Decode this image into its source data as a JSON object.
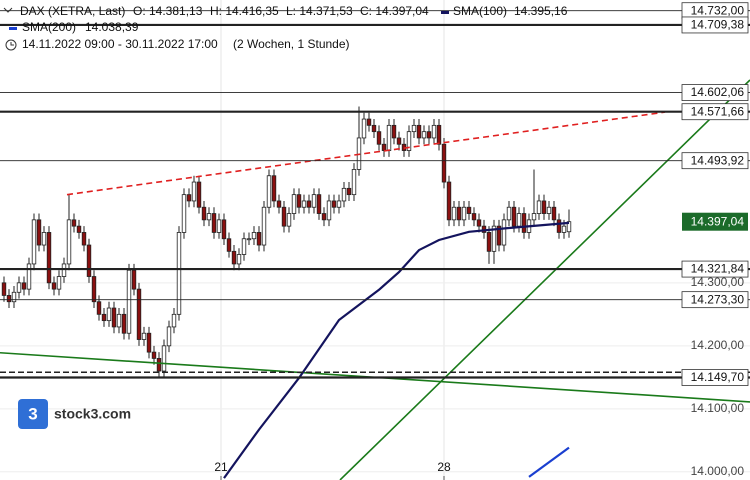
{
  "chart_data": {
    "type": "candlestick",
    "title": "DAX (XETRA, Last)",
    "ohlc_labels": [
      "O: 14.381,13",
      "H: 14.416,35",
      "L: 14.371,53",
      "C: 14.397,04"
    ],
    "date_range": "14.11.2022 09:00 - 30.11.2022 17:00",
    "period": "(2 Wochen, 1 Stunde)",
    "logo": "stock3.com",
    "xlim": [
      -0.8,
      149.2
    ],
    "ylim": [
      13987,
      14749
    ],
    "xticks": [
      {
        "value": 43.4,
        "label": "21"
      },
      {
        "value": 88,
        "label": "28"
      }
    ],
    "yticks": [
      {
        "value": 14000,
        "label": "14.000,00"
      },
      {
        "value": 14100,
        "label": "14.100,00"
      },
      {
        "value": 14200,
        "label": "14.200,00"
      },
      {
        "value": 14300,
        "label": "14.300,00"
      }
    ],
    "up_color": "#ffffff",
    "down_color": "#8b1010",
    "open": [
      14300,
      14280,
      14270,
      14285,
      14300,
      14290,
      14330,
      14400,
      14360,
      14380,
      14300,
      14290,
      14310,
      14330,
      14400,
      14390,
      14380,
      14360,
      14310,
      14270,
      14250,
      14240,
      14260,
      14230,
      14250,
      14220,
      14320,
      14290,
      14210,
      14220,
      14190,
      14180,
      14160,
      14200,
      14230,
      14250,
      14380,
      14440,
      14430,
      14460,
      14420,
      14400,
      14410,
      14380,
      14400,
      14370,
      14350,
      14330,
      14345,
      14370,
      14370,
      14380,
      14360,
      14420,
      14470,
      14430,
      14420,
      14390,
      14410,
      14440,
      14420,
      14430,
      14420,
      14440,
      14410,
      14400,
      14430,
      14420,
      14430,
      14450,
      14440,
      14480,
      14530,
      14560,
      14550,
      14540,
      14520,
      14510,
      14550,
      14530,
      14520,
      14510,
      14540,
      14550,
      14530,
      14540,
      14530,
      14550,
      14520,
      14460,
      14400,
      14420,
      14400,
      14420,
      14410,
      14400,
      14390,
      14380,
      14350,
      14390,
      14360,
      14400,
      14420,
      14390,
      14410,
      14380,
      14400,
      14410,
      14430,
      14410,
      14420,
      14400,
      14380,
      14381.13
    ],
    "high": [
      14310,
      14290,
      14295,
      14310,
      14310,
      14340,
      14410,
      14410,
      14390,
      14390,
      14310,
      14320,
      14340,
      14440,
      14410,
      14400,
      14390,
      14370,
      14320,
      14280,
      14260,
      14270,
      14270,
      14260,
      14260,
      14330,
      14330,
      14300,
      14230,
      14230,
      14200,
      14190,
      14210,
      14240,
      14260,
      14390,
      14450,
      14450,
      14470,
      14470,
      14430,
      14420,
      14420,
      14410,
      14410,
      14380,
      14360,
      14355,
      14380,
      14380,
      14390,
      14390,
      14430,
      14480,
      14480,
      14440,
      14430,
      14420,
      14450,
      14450,
      14440,
      14440,
      14450,
      14450,
      14420,
      14440,
      14440,
      14440,
      14460,
      14460,
      14490,
      14580,
      14570,
      14570,
      14560,
      14550,
      14530,
      14560,
      14560,
      14540,
      14530,
      14550,
      14560,
      14560,
      14550,
      14550,
      14560,
      14560,
      14530,
      14470,
      14430,
      14430,
      14430,
      14430,
      14420,
      14410,
      14400,
      14390,
      14400,
      14400,
      14410,
      14430,
      14430,
      14420,
      14420,
      14410,
      14480,
      14440,
      14440,
      14430,
      14430,
      14410,
      14400,
      14416.35
    ],
    "low": [
      14270,
      14260,
      14260,
      14275,
      14280,
      14280,
      14320,
      14350,
      14350,
      14290,
      14280,
      14280,
      14300,
      14320,
      14380,
      14370,
      14350,
      14300,
      14260,
      14240,
      14230,
      14230,
      14220,
      14220,
      14210,
      14210,
      14280,
      14200,
      14200,
      14180,
      14170,
      14150,
      14150,
      14190,
      14220,
      14240,
      14370,
      14420,
      14420,
      14410,
      14390,
      14390,
      14370,
      14370,
      14360,
      14340,
      14320,
      14320,
      14335,
      14360,
      14360,
      14350,
      14350,
      14410,
      14420,
      14410,
      14380,
      14380,
      14400,
      14410,
      14410,
      14410,
      14410,
      14400,
      14390,
      14390,
      14410,
      14410,
      14420,
      14430,
      14430,
      14470,
      14520,
      14540,
      14530,
      14510,
      14500,
      14500,
      14520,
      14510,
      14500,
      14500,
      14530,
      14520,
      14520,
      14520,
      14520,
      14510,
      14450,
      14390,
      14390,
      14390,
      14390,
      14400,
      14390,
      14380,
      14370,
      14330,
      14330,
      14350,
      14350,
      14390,
      14380,
      14380,
      14370,
      14370,
      14390,
      14400,
      14400,
      14400,
      14390,
      14370,
      14370,
      14371.53
    ],
    "close": [
      14280,
      14270,
      14285,
      14300,
      14290,
      14330,
      14400,
      14360,
      14380,
      14300,
      14290,
      14310,
      14330,
      14400,
      14390,
      14380,
      14360,
      14310,
      14270,
      14250,
      14240,
      14260,
      14230,
      14250,
      14220,
      14320,
      14290,
      14210,
      14220,
      14190,
      14180,
      14160,
      14200,
      14230,
      14250,
      14380,
      14440,
      14430,
      14460,
      14420,
      14400,
      14410,
      14380,
      14400,
      14370,
      14350,
      14330,
      14345,
      14370,
      14370,
      14380,
      14360,
      14420,
      14470,
      14430,
      14420,
      14390,
      14410,
      14440,
      14420,
      14430,
      14420,
      14440,
      14410,
      14400,
      14430,
      14420,
      14430,
      14450,
      14440,
      14480,
      14530,
      14560,
      14550,
      14540,
      14520,
      14510,
      14550,
      14530,
      14520,
      14510,
      14540,
      14550,
      14530,
      14540,
      14530,
      14550,
      14520,
      14460,
      14400,
      14420,
      14400,
      14420,
      14410,
      14400,
      14390,
      14380,
      14350,
      14390,
      14360,
      14400,
      14420,
      14390,
      14410,
      14380,
      14400,
      14410,
      14430,
      14410,
      14420,
      14400,
      14380,
      14390,
      14397.04
    ],
    "series": [
      {
        "name": "SMA(100)",
        "label": "14.395,16",
        "color": "#14145e",
        "x": [
          44,
          51,
          59,
          67,
          75,
          79,
          83,
          87,
          93,
          101,
          113
        ],
        "values": [
          13990,
          14067,
          14149,
          14241,
          14289,
          14317,
          14352,
          14368,
          14381,
          14387,
          14395.16
        ]
      },
      {
        "name": "SMA(200)",
        "label": "14.038,39",
        "color": "#1a3fd0",
        "x": [
          105,
          113
        ],
        "values": [
          13992,
          14038.39
        ]
      }
    ],
    "trendlines": [
      {
        "color": "#e02020",
        "dash": true,
        "x": [
          12.6,
          132.2
        ],
        "values": [
          14440,
          14571
        ]
      },
      {
        "color": "#1a7a1a",
        "dash": false,
        "x": [
          67.2,
          149.2
        ],
        "values": [
          13987,
          14622
        ]
      },
      {
        "color": "#1a7a1a",
        "dash": false,
        "x": [
          -0.8,
          149.2
        ],
        "values": [
          14189,
          14111
        ]
      }
    ],
    "levels": [
      {
        "value": 14732,
        "label": "14.732,00",
        "weight": "thin"
      },
      {
        "value": 14709.38,
        "label": "14.709,38",
        "weight": "thick"
      },
      {
        "value": 14602.06,
        "label": "14.602,06",
        "weight": "thin"
      },
      {
        "value": 14571.66,
        "label": "14.571,66",
        "weight": "thick"
      },
      {
        "value": 14493.92,
        "label": "14.493,92",
        "weight": "thin"
      },
      {
        "value": 14321.84,
        "label": "14.321,84",
        "weight": "thick"
      },
      {
        "value": 14273.3,
        "label": "14.273,30",
        "weight": "thin"
      },
      {
        "value": 14149.7,
        "label": "14.149,70",
        "weight": "thick"
      }
    ],
    "dashed_levels": [
      {
        "value": 14158
      }
    ],
    "current_price": {
      "value": 14397.04,
      "label": "14.397,04",
      "color": "#1b6b2a"
    }
  }
}
